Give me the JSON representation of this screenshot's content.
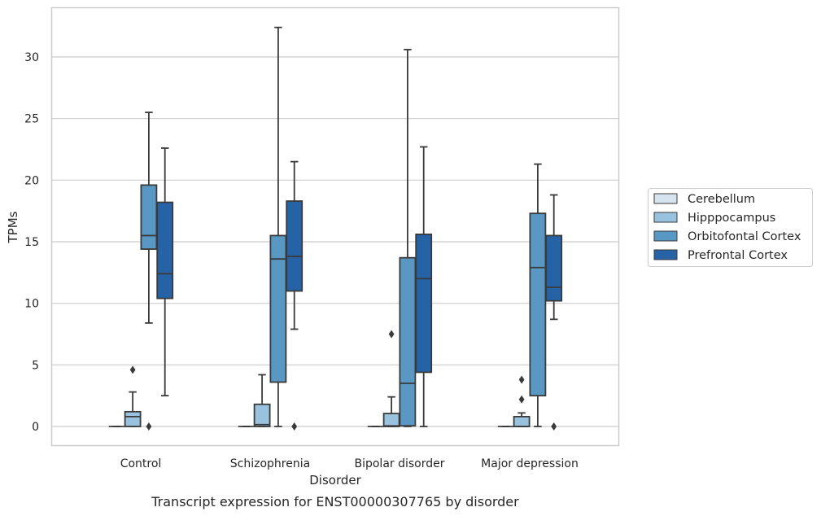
{
  "caption": "Transcript expression for ENST00000307765 by disorder",
  "chart_data": {
    "type": "box",
    "title": "",
    "xlabel": "Disorder",
    "ylabel": "TPMs",
    "categories": [
      "Control",
      "Schizophrenia",
      "Bipolar disorder",
      "Major depression"
    ],
    "ylim": [
      -1.6,
      33.8
    ],
    "yticks": [
      "0",
      "5",
      "10",
      "15",
      "20",
      "25",
      "30"
    ],
    "grid": "horizontal",
    "legend_position": "right",
    "series": [
      {
        "name": "Cerebellum",
        "color": "#d6e4f0",
        "boxes": [
          {
            "whislo": 0,
            "q1": 0,
            "med": 0,
            "q3": 0,
            "whishi": 0,
            "fliers": []
          },
          {
            "whislo": 0,
            "q1": 0,
            "med": 0,
            "q3": 0,
            "whishi": 0,
            "fliers": []
          },
          {
            "whislo": 0,
            "q1": 0,
            "med": 0,
            "q3": 0,
            "whishi": 0,
            "fliers": []
          },
          {
            "whislo": 0,
            "q1": 0,
            "med": 0,
            "q3": 0,
            "whishi": 0,
            "fliers": []
          }
        ]
      },
      {
        "name": "Hipppocampus",
        "color": "#98c2dd",
        "boxes": [
          {
            "whislo": 0,
            "q1": 0,
            "med": 0.8,
            "q3": 1.2,
            "whishi": 2.8,
            "fliers": [
              4.6
            ]
          },
          {
            "whislo": 0,
            "q1": 0,
            "med": 0.15,
            "q3": 1.8,
            "whishi": 4.2,
            "fliers": []
          },
          {
            "whislo": 0,
            "q1": 0,
            "med": 0.05,
            "q3": 1.05,
            "whishi": 2.4,
            "fliers": [
              7.5
            ]
          },
          {
            "whislo": 0,
            "q1": 0,
            "med": 0,
            "q3": 0.8,
            "whishi": 1.1,
            "fliers": [
              3.8,
              2.2
            ]
          }
        ]
      },
      {
        "name": "Orbitofontal Cortex",
        "color": "#5898c3",
        "boxes": [
          {
            "whislo": 8.4,
            "q1": 14.4,
            "med": 15.5,
            "q3": 19.6,
            "whishi": 25.5,
            "fliers": [
              0
            ]
          },
          {
            "whislo": 0,
            "q1": 3.6,
            "med": 13.6,
            "q3": 15.5,
            "whishi": 32.4,
            "fliers": []
          },
          {
            "whislo": 0,
            "q1": 0.05,
            "med": 3.5,
            "q3": 13.7,
            "whishi": 30.6,
            "fliers": []
          },
          {
            "whislo": 0,
            "q1": 2.5,
            "med": 12.9,
            "q3": 17.3,
            "whishi": 21.3,
            "fliers": []
          }
        ]
      },
      {
        "name": "Prefrontal Cortex",
        "color": "#2663a6",
        "boxes": [
          {
            "whislo": 2.5,
            "q1": 10.4,
            "med": 12.4,
            "q3": 18.2,
            "whishi": 22.6,
            "fliers": []
          },
          {
            "whislo": 7.9,
            "q1": 11.0,
            "med": 13.8,
            "q3": 18.3,
            "whishi": 21.5,
            "fliers": [
              0
            ]
          },
          {
            "whislo": 0,
            "q1": 4.4,
            "med": 12.0,
            "q3": 15.6,
            "whishi": 22.7,
            "fliers": []
          },
          {
            "whislo": 8.7,
            "q1": 10.2,
            "med": 11.3,
            "q3": 15.5,
            "whishi": 18.8,
            "fliers": [
              0
            ]
          }
        ]
      }
    ]
  }
}
